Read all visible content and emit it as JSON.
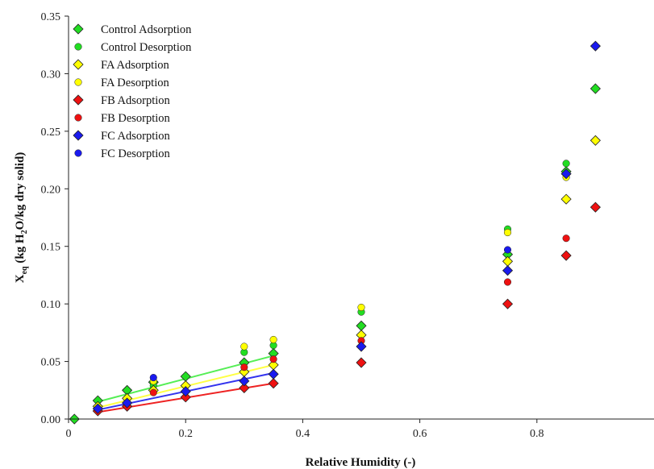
{
  "chart_data": {
    "type": "scatter",
    "title": "",
    "xlabel": "Relative Humidity (-)",
    "ylabel": {
      "prefix": "X",
      "prefix_sub": "eq",
      "mid1": " (kg H",
      "mid_sub": "2",
      "mid2": "O/kg dry solid)"
    },
    "xlim": [
      0,
      1.0
    ],
    "ylim": [
      0,
      0.35
    ],
    "xticks": [
      0,
      0.2,
      0.4,
      0.6,
      0.8
    ],
    "xtick_labels": [
      "0",
      "0.2",
      "0.4",
      "0.6",
      "0.8"
    ],
    "yticks": [
      0,
      0.05,
      0.1,
      0.15,
      0.2,
      0.25,
      0.3,
      0.35
    ],
    "ytick_labels": [
      "0.00",
      "0.05",
      "0.10",
      "0.15",
      "0.20",
      "0.25",
      "0.30",
      "0.35"
    ],
    "grid": false,
    "legend_position": "top-left",
    "series": [
      {
        "name": "Control Adsorption",
        "marker": "diamond",
        "color": "#22dd22",
        "x": [
          0.01,
          0.05,
          0.1,
          0.145,
          0.2,
          0.3,
          0.35,
          0.5,
          0.75,
          0.85,
          0.9
        ],
        "y": [
          0.0,
          0.016,
          0.025,
          0.032,
          0.037,
          0.049,
          0.057,
          0.081,
          0.143,
          0.215,
          0.287
        ]
      },
      {
        "name": "Control Desorption",
        "marker": "circle",
        "color": "#22dd22",
        "x": [
          0.145,
          0.3,
          0.35,
          0.5,
          0.75,
          0.85
        ],
        "y": [
          0.029,
          0.058,
          0.064,
          0.093,
          0.165,
          0.222
        ]
      },
      {
        "name": "FA Adsorption",
        "marker": "diamond",
        "color": "#ffff00",
        "x": [
          0.05,
          0.1,
          0.145,
          0.2,
          0.3,
          0.35,
          0.5,
          0.75,
          0.85,
          0.9
        ],
        "y": [
          0.011,
          0.018,
          0.025,
          0.029,
          0.041,
          0.047,
          0.073,
          0.137,
          0.191,
          0.242
        ]
      },
      {
        "name": "FA Desorption",
        "marker": "circle",
        "color": "#ffff00",
        "x": [
          0.145,
          0.3,
          0.35,
          0.5,
          0.75,
          0.85
        ],
        "y": [
          0.033,
          0.063,
          0.069,
          0.097,
          0.162,
          0.21
        ]
      },
      {
        "name": "FB Adsorption",
        "marker": "diamond",
        "color": "#ee1111",
        "x": [
          0.05,
          0.1,
          0.2,
          0.3,
          0.35,
          0.5,
          0.75,
          0.85,
          0.9
        ],
        "y": [
          0.007,
          0.011,
          0.019,
          0.027,
          0.031,
          0.049,
          0.1,
          0.142,
          0.184
        ]
      },
      {
        "name": "FB Desorption",
        "marker": "circle",
        "color": "#ee1111",
        "x": [
          0.145,
          0.3,
          0.35,
          0.5,
          0.75,
          0.85
        ],
        "y": [
          0.023,
          0.045,
          0.052,
          0.068,
          0.119,
          0.157
        ]
      },
      {
        "name": "FC Adsorption",
        "marker": "diamond",
        "color": "#1a1aee",
        "x": [
          0.05,
          0.1,
          0.2,
          0.3,
          0.35,
          0.5,
          0.75,
          0.85,
          0.9
        ],
        "y": [
          0.009,
          0.014,
          0.024,
          0.033,
          0.039,
          0.063,
          0.129,
          0.213,
          0.324
        ]
      },
      {
        "name": "FC Desorption",
        "marker": "circle",
        "color": "#1a1aee",
        "x": [
          0.145,
          0.75
        ],
        "y": [
          0.036,
          0.147
        ]
      }
    ],
    "fit_lines": [
      {
        "color": "#55ee55",
        "x": [
          0.05,
          0.35
        ],
        "y": [
          0.015,
          0.055
        ]
      },
      {
        "color": "#ffff44",
        "x": [
          0.05,
          0.35
        ],
        "y": [
          0.01,
          0.047
        ]
      },
      {
        "color": "#3333ee",
        "x": [
          0.05,
          0.35
        ],
        "y": [
          0.008,
          0.04
        ]
      },
      {
        "color": "#ee2222",
        "x": [
          0.05,
          0.35
        ],
        "y": [
          0.006,
          0.031
        ]
      }
    ]
  }
}
